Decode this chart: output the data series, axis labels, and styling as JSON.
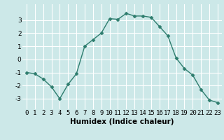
{
  "x": [
    0,
    1,
    2,
    3,
    4,
    5,
    6,
    7,
    8,
    9,
    10,
    11,
    12,
    13,
    14,
    15,
    16,
    17,
    18,
    19,
    20,
    21,
    22,
    23
  ],
  "y": [
    -1.0,
    -1.1,
    -1.5,
    -2.1,
    -3.0,
    -1.9,
    -1.1,
    1.0,
    1.5,
    2.0,
    3.1,
    3.05,
    3.5,
    3.3,
    3.3,
    3.2,
    2.5,
    1.8,
    0.1,
    -0.7,
    -1.2,
    -2.3,
    -3.1,
    -3.3
  ],
  "line_color": "#2e7d6e",
  "marker": "D",
  "marker_size": 2.5,
  "bg_color": "#cce8e8",
  "grid_color": "#ffffff",
  "xlabel": "Humidex (Indice chaleur)",
  "xlabel_fontsize": 7.5,
  "tick_fontsize": 6.5,
  "xlim": [
    -0.5,
    23.5
  ],
  "ylim": [
    -3.8,
    4.2
  ],
  "yticks": [
    -3,
    -2,
    -1,
    0,
    1,
    2,
    3
  ],
  "xticks": [
    0,
    1,
    2,
    3,
    4,
    5,
    6,
    7,
    8,
    9,
    10,
    11,
    12,
    13,
    14,
    15,
    16,
    17,
    18,
    19,
    20,
    21,
    22,
    23
  ]
}
